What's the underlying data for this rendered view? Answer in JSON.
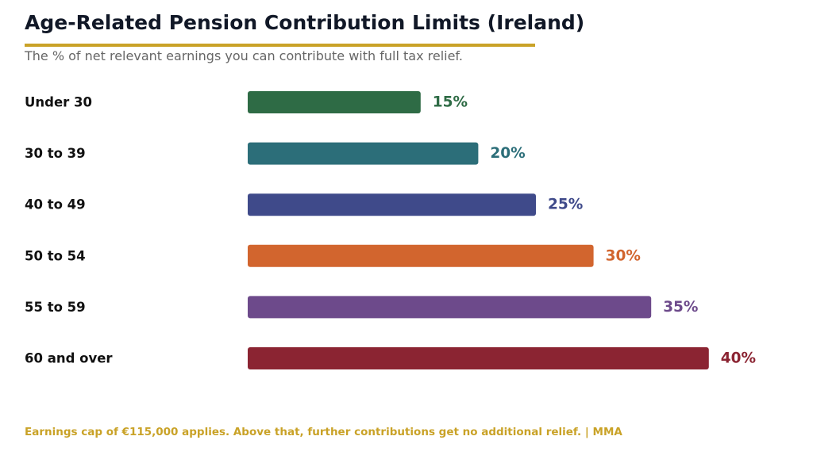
{
  "title": "Age-Related Pension Contribution Limits (Ireland)",
  "subtitle": "The % of net relevant earnings you can contribute with full tax relief.",
  "footer": "Earnings cap of €115,000 applies. Above that, further contributions get no additional relief.  |  MMA",
  "colors": {
    "accent_rule": "#c9a227",
    "footer_text": "#c9a227"
  },
  "chart_data": {
    "type": "bar",
    "orientation": "horizontal",
    "categories": [
      "Under 30",
      "30 to 39",
      "40 to 49",
      "50 to 54",
      "55 to 59",
      "60 and over"
    ],
    "values": [
      15,
      20,
      25,
      30,
      35,
      40
    ],
    "value_labels": [
      "15%",
      "20%",
      "25%",
      "30%",
      "35%",
      "40%"
    ],
    "colors": [
      "#2e6b45",
      "#2c6e79",
      "#3f4a8a",
      "#d2652e",
      "#6d4a8b",
      "#8b2432"
    ],
    "xlim": [
      0,
      40
    ],
    "grid": false,
    "legend": "none",
    "title": "",
    "xlabel": "",
    "ylabel": ""
  }
}
